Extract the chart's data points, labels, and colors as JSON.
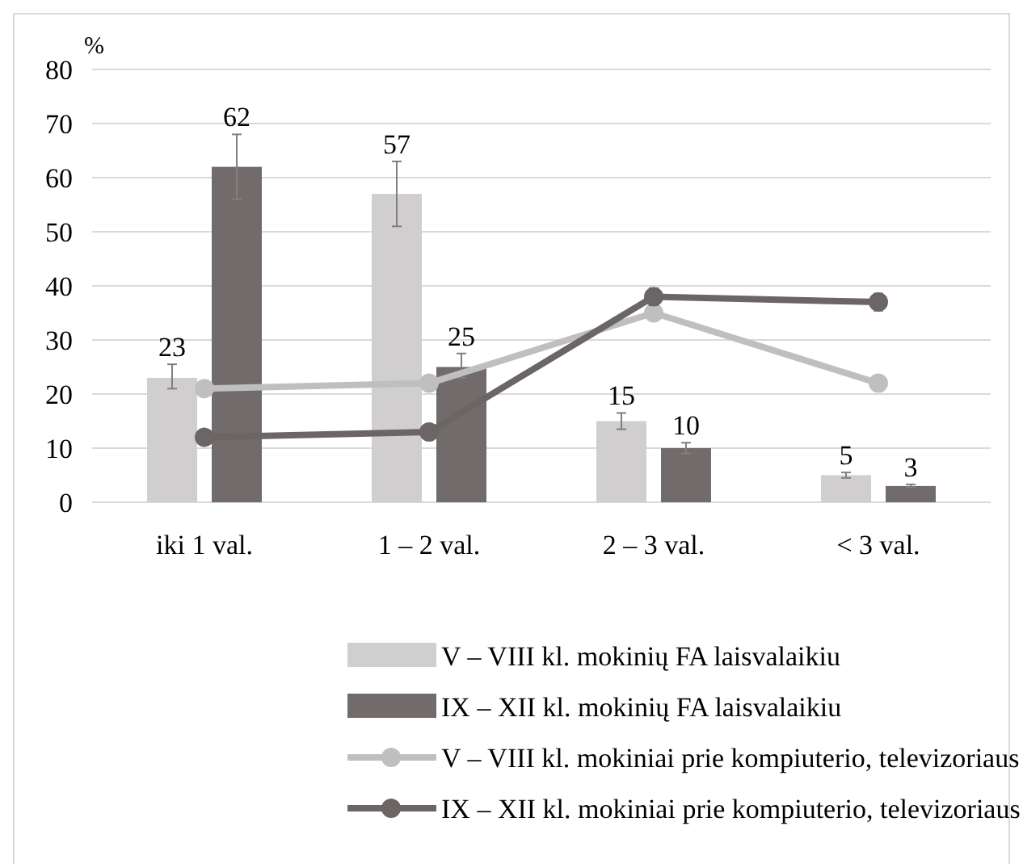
{
  "chart_data": {
    "type": "bar",
    "ylabel": "%",
    "categories": [
      "iki 1 val.",
      "1 – 2 val.",
      "2 – 3 val.",
      "< 3 val."
    ],
    "series": [
      {
        "name": "V – VIII kl. mokinių FA laisvalaikiu",
        "color": "#d0cece",
        "values": [
          23,
          57,
          15,
          5
        ],
        "value_labels": [
          "23",
          "57",
          "15",
          "5"
        ],
        "errors": [
          [
            21,
            25.5
          ],
          [
            51,
            63
          ],
          [
            13.5,
            16.5
          ],
          [
            4.5,
            5.5
          ]
        ]
      },
      {
        "name": "IX – XII kl. mokinių FA laisvalaikiu",
        "color": "#716b6b",
        "values": [
          62,
          25,
          10,
          3
        ],
        "value_labels": [
          "62",
          "25",
          "10",
          "3"
        ],
        "errors": [
          [
            56,
            68
          ],
          [
            23,
            27.5
          ],
          [
            9,
            11
          ],
          [
            2.8,
            3.3
          ]
        ]
      },
      {
        "name": "V – VIII kl. mokiniai prie kompiuterio, televizoriaus",
        "type": "line",
        "color": "#bfbfbf",
        "values": [
          21,
          22,
          35,
          22
        ]
      },
      {
        "name": "IX – XII kl. mokiniai prie kompiuterio, televizoriaus",
        "type": "line",
        "color": "#6b6565",
        "values": [
          12,
          13,
          38,
          37
        ],
        "errors": [
          null,
          null,
          [
            36.5,
            39.5
          ],
          [
            35.5,
            38.5
          ]
        ]
      }
    ],
    "ylim": [
      0,
      80
    ],
    "yticks": [
      0,
      10,
      20,
      30,
      40,
      50,
      60,
      70,
      80
    ],
    "grid": "y",
    "legend": "bottom",
    "marker": "circle",
    "line_style": "solid"
  }
}
